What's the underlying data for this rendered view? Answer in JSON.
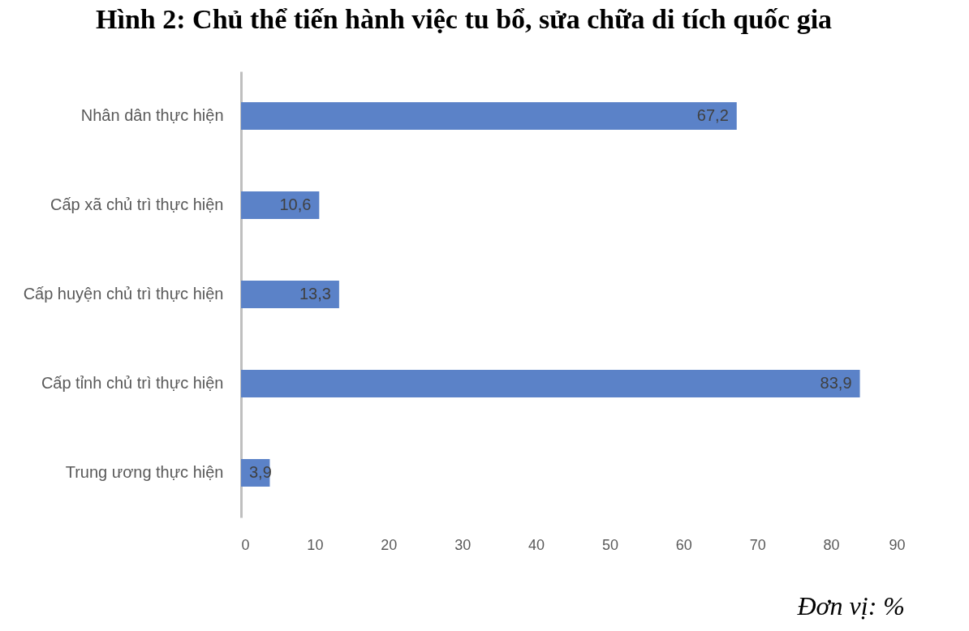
{
  "chart_data": {
    "type": "bar",
    "orientation": "horizontal",
    "title": "Hình 2: Chủ thể tiến hành việc tu bổ, sửa chữa di tích quốc gia",
    "categories": [
      "Nhân dân thực hiện",
      "Cấp xã chủ trì thực hiện",
      "Cấp huyện chủ trì thực hiện",
      "Cấp tỉnh chủ trì thực hiện",
      "Trung ương thực hiện"
    ],
    "values": [
      67.2,
      10.6,
      13.3,
      83.9,
      3.9
    ],
    "color": "#5b82c8",
    "value_labels": [
      "67,2",
      "10,6",
      "13,3",
      "83,9",
      "3,9"
    ],
    "xlim": [
      0,
      90
    ],
    "xticks": [
      0,
      10,
      20,
      30,
      40,
      50,
      60,
      70,
      80,
      90
    ],
    "grid": false,
    "annotations": [
      "Đơn vị: %"
    ]
  }
}
